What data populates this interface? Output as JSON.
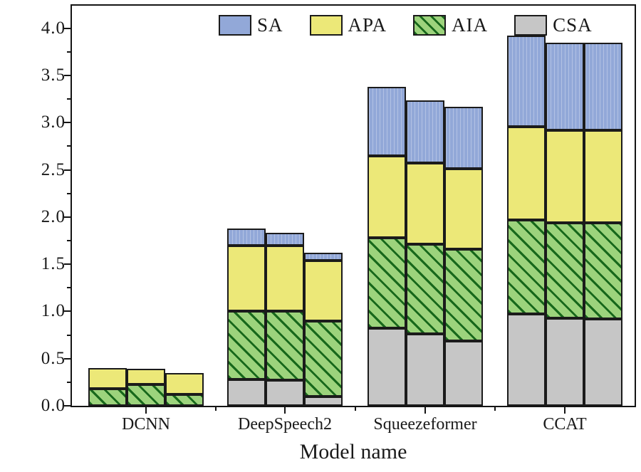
{
  "figure": {
    "y_axis_label": "Cumulative metric value",
    "x_axis_label": "Model name",
    "y_tick_labels": [
      "0.0",
      "0.5",
      "1.0",
      "1.5",
      "2.0",
      "2.5",
      "3.0",
      "3.5",
      "4.0"
    ],
    "x_tick_labels": [
      "DCNN",
      "DeepSpeech2",
      "Squeezeformer",
      "CCAT"
    ]
  },
  "legend": {
    "items": [
      {
        "label": "SA",
        "color": "#92a8d8",
        "hatch": false
      },
      {
        "label": "APA",
        "color": "#ece878",
        "hatch": false
      },
      {
        "label": "AIA",
        "color": "#9cd37c",
        "hatch": true
      },
      {
        "label": "CSA",
        "color": "#c6c6c6",
        "hatch": false
      }
    ]
  },
  "chart_data": {
    "type": "bar",
    "stacked": true,
    "title": "",
    "xlabel": "Model name",
    "ylabel": "Cumulative metric value",
    "categories": [
      "DCNN",
      "DeepSpeech2",
      "Squeezeformer",
      "CCAT"
    ],
    "bars_per_category": 3,
    "stack_order_bottom_to_top": [
      "CSA",
      "AIA",
      "APA",
      "SA"
    ],
    "series": [
      {
        "name": "CSA",
        "color": "#c6c6c6",
        "values": [
          [
            0,
            0,
            0
          ],
          [
            0.28,
            0.27,
            0.1
          ],
          [
            0.82,
            0.76,
            0.69
          ],
          [
            0.97,
            0.93,
            0.92
          ]
        ]
      },
      {
        "name": "AIA",
        "color": "#9cd37c",
        "values": [
          [
            0.18,
            0.23,
            0.12
          ],
          [
            0.72,
            0.73,
            0.8
          ],
          [
            0.96,
            0.95,
            0.97
          ],
          [
            1.0,
            1.01,
            1.02
          ]
        ]
      },
      {
        "name": "APA",
        "color": "#ece878",
        "values": [
          [
            0.22,
            0.16,
            0.23
          ],
          [
            0.7,
            0.7,
            0.64
          ],
          [
            0.87,
            0.86,
            0.85
          ],
          [
            0.99,
            0.98,
            0.98
          ]
        ]
      },
      {
        "name": "SA",
        "color": "#92a8d8",
        "values": [
          [
            0,
            0,
            0
          ],
          [
            0.18,
            0.13,
            0.08
          ],
          [
            0.73,
            0.67,
            0.66
          ],
          [
            0.96,
            0.93,
            0.93
          ]
        ]
      }
    ],
    "bar_totals": [
      [
        0.4,
        0.39,
        0.35
      ],
      [
        1.88,
        1.83,
        1.62
      ],
      [
        3.38,
        3.24,
        3.17
      ],
      [
        3.92,
        3.85,
        3.85
      ]
    ],
    "ylim": [
      0,
      4.24
    ],
    "y_major_step": 0.5,
    "y_minor_step": 0.25,
    "grid": false,
    "legend_position": "top-inside-horizontal"
  }
}
